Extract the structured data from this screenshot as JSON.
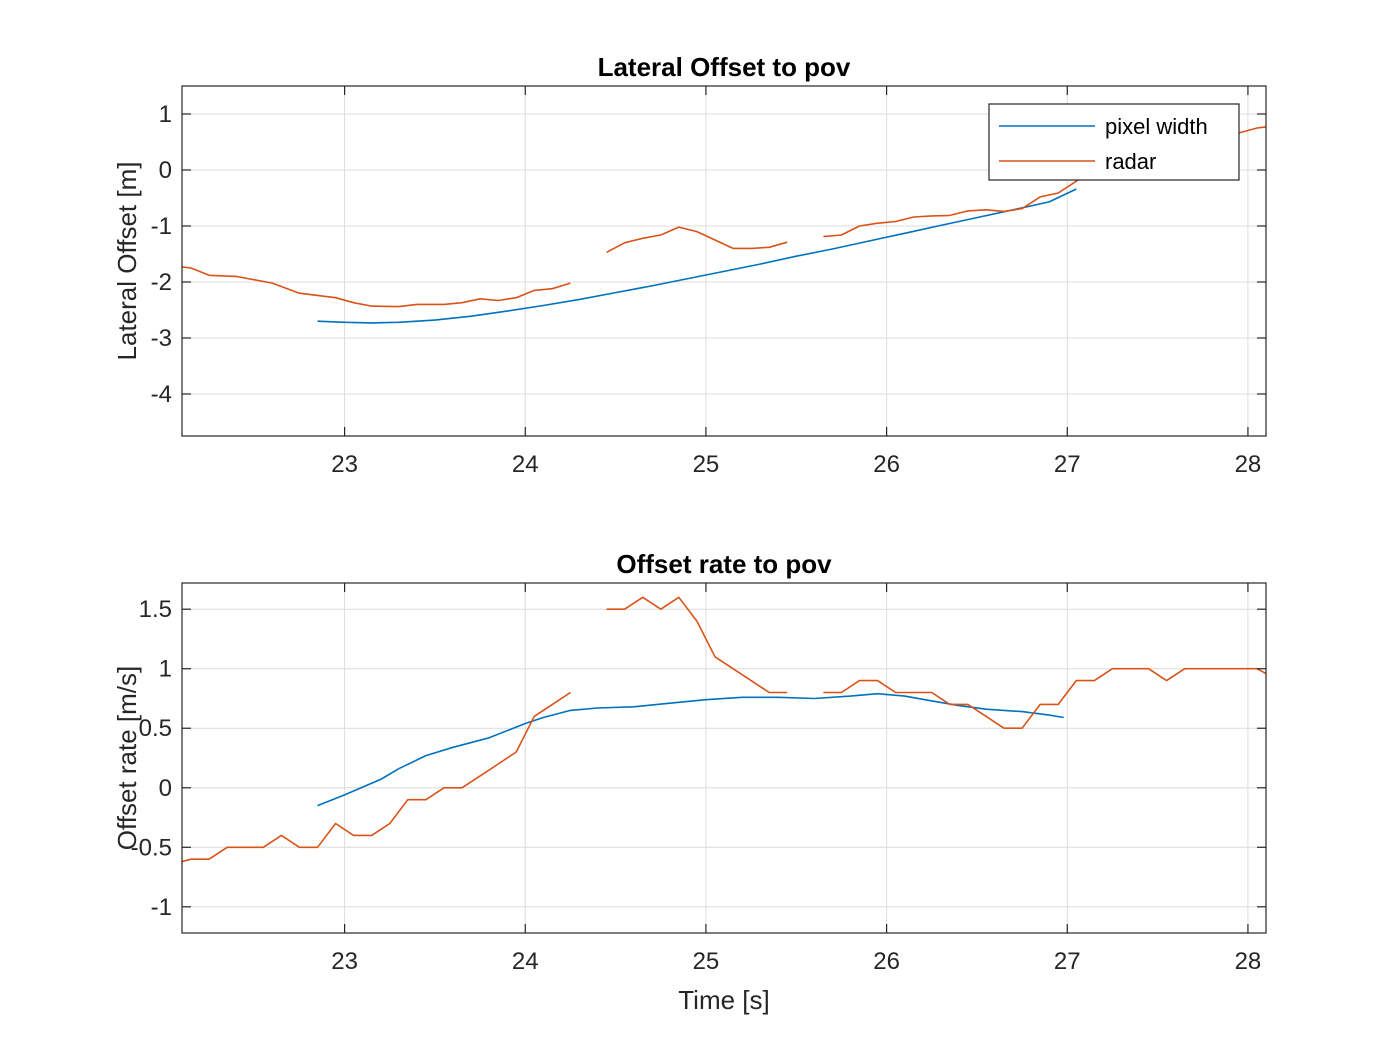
{
  "colors": {
    "pixel_width": "#0072BD",
    "radar": "#D95319",
    "axes": "#262626",
    "grid": "#DCDCDC",
    "background": "#FFFFFF"
  },
  "chart_data": [
    {
      "type": "line",
      "title": "Lateral  Offset to pov",
      "xlabel": "",
      "ylabel": "Lateral Offset [m]",
      "xlim": [
        22.1,
        28.1
      ],
      "ylim": [
        -4.75,
        1.5
      ],
      "xticks": [
        23,
        24,
        25,
        26,
        27,
        28
      ],
      "yticks": [
        -4,
        -3,
        -2,
        -1,
        0,
        1
      ],
      "grid": true,
      "legend": {
        "placement": "top-right",
        "entries": [
          "pixel width",
          "radar"
        ]
      },
      "series": [
        {
          "name": "pixel width",
          "color": "#0072BD",
          "segments": [
            [
              [
                22.85,
                -2.7
              ],
              [
                23.0,
                -2.72
              ],
              [
                23.15,
                -2.73
              ],
              [
                23.3,
                -2.72
              ],
              [
                23.5,
                -2.68
              ],
              [
                23.7,
                -2.61
              ],
              [
                23.9,
                -2.52
              ],
              [
                24.1,
                -2.42
              ],
              [
                24.3,
                -2.31
              ],
              [
                24.5,
                -2.19
              ],
              [
                24.7,
                -2.07
              ],
              [
                24.9,
                -1.94
              ],
              [
                25.1,
                -1.81
              ],
              [
                25.3,
                -1.68
              ],
              [
                25.5,
                -1.54
              ],
              [
                25.7,
                -1.41
              ],
              [
                25.9,
                -1.27
              ],
              [
                26.1,
                -1.13
              ],
              [
                26.3,
                -0.99
              ],
              [
                26.5,
                -0.85
              ],
              [
                26.7,
                -0.71
              ],
              [
                26.9,
                -0.57
              ],
              [
                27.05,
                -0.34
              ]
            ]
          ]
        },
        {
          "name": "radar",
          "color": "#D95319",
          "segments": [
            [
              [
                22.1,
                -1.73
              ],
              [
                22.15,
                -1.75
              ],
              [
                22.25,
                -1.88
              ],
              [
                22.4,
                -1.9
              ],
              [
                22.6,
                -2.02
              ],
              [
                22.75,
                -2.2
              ],
              [
                22.95,
                -2.28
              ],
              [
                23.05,
                -2.37
              ],
              [
                23.15,
                -2.43
              ],
              [
                23.3,
                -2.44
              ],
              [
                23.4,
                -2.4
              ],
              [
                23.55,
                -2.4
              ],
              [
                23.65,
                -2.37
              ],
              [
                23.75,
                -2.3
              ],
              [
                23.85,
                -2.33
              ],
              [
                23.95,
                -2.28
              ],
              [
                24.05,
                -2.15
              ],
              [
                24.15,
                -2.12
              ],
              [
                24.25,
                -2.02
              ]
            ],
            [
              [
                24.45,
                -1.47
              ],
              [
                24.55,
                -1.3
              ],
              [
                24.65,
                -1.22
              ],
              [
                24.75,
                -1.16
              ],
              [
                24.85,
                -1.02
              ],
              [
                24.95,
                -1.1
              ],
              [
                25.05,
                -1.25
              ],
              [
                25.15,
                -1.4
              ],
              [
                25.25,
                -1.4
              ],
              [
                25.35,
                -1.38
              ],
              [
                25.45,
                -1.29
              ]
            ],
            [
              [
                25.65,
                -1.19
              ],
              [
                25.75,
                -1.16
              ],
              [
                25.85,
                -1.0
              ],
              [
                25.95,
                -0.95
              ],
              [
                26.05,
                -0.92
              ],
              [
                26.15,
                -0.84
              ],
              [
                26.25,
                -0.82
              ],
              [
                26.35,
                -0.81
              ],
              [
                26.45,
                -0.73
              ],
              [
                26.55,
                -0.71
              ],
              [
                26.65,
                -0.74
              ],
              [
                26.75,
                -0.69
              ],
              [
                26.85,
                -0.48
              ],
              [
                26.95,
                -0.41
              ],
              [
                27.05,
                -0.2
              ],
              [
                27.1,
                -0.08
              ],
              [
                27.2,
                0.1
              ],
              [
                27.35,
                0.3
              ],
              [
                27.5,
                0.4
              ],
              [
                27.65,
                0.48
              ],
              [
                27.8,
                0.55
              ],
              [
                27.95,
                0.66
              ],
              [
                28.05,
                0.75
              ],
              [
                28.1,
                0.77
              ]
            ]
          ]
        }
      ]
    },
    {
      "type": "line",
      "title": "Offset rate to pov",
      "xlabel": "Time [s]",
      "ylabel": "Offset rate [m/s]",
      "xlim": [
        22.1,
        28.1
      ],
      "ylim": [
        -1.22,
        1.72
      ],
      "xticks": [
        23,
        24,
        25,
        26,
        27,
        28
      ],
      "yticks": [
        -1,
        -0.5,
        0,
        0.5,
        1,
        1.5
      ],
      "grid": true,
      "series": [
        {
          "name": "pixel width",
          "color": "#0072BD",
          "segments": [
            [
              [
                22.85,
                -0.15
              ],
              [
                23.0,
                -0.06
              ],
              [
                23.2,
                0.07
              ],
              [
                23.3,
                0.16
              ],
              [
                23.45,
                0.27
              ],
              [
                23.6,
                0.34
              ],
              [
                23.8,
                0.42
              ],
              [
                24.0,
                0.54
              ],
              [
                24.1,
                0.59
              ],
              [
                24.25,
                0.65
              ],
              [
                24.4,
                0.67
              ],
              [
                24.6,
                0.68
              ],
              [
                24.8,
                0.71
              ],
              [
                25.0,
                0.74
              ],
              [
                25.2,
                0.76
              ],
              [
                25.4,
                0.76
              ],
              [
                25.6,
                0.75
              ],
              [
                25.8,
                0.77
              ],
              [
                25.95,
                0.79
              ],
              [
                26.1,
                0.77
              ],
              [
                26.25,
                0.73
              ],
              [
                26.4,
                0.69
              ],
              [
                26.55,
                0.66
              ],
              [
                26.75,
                0.64
              ],
              [
                26.9,
                0.61
              ],
              [
                26.98,
                0.59
              ]
            ]
          ]
        },
        {
          "name": "radar",
          "color": "#D95319",
          "segments": [
            [
              [
                22.1,
                -0.62
              ],
              [
                22.15,
                -0.6
              ],
              [
                22.25,
                -0.6
              ],
              [
                22.35,
                -0.5
              ],
              [
                22.45,
                -0.5
              ],
              [
                22.55,
                -0.5
              ],
              [
                22.65,
                -0.4
              ],
              [
                22.75,
                -0.5
              ],
              [
                22.85,
                -0.5
              ],
              [
                22.95,
                -0.3
              ],
              [
                23.05,
                -0.4
              ],
              [
                23.15,
                -0.4
              ],
              [
                23.25,
                -0.3
              ],
              [
                23.35,
                -0.1
              ],
              [
                23.45,
                -0.1
              ],
              [
                23.55,
                0.0
              ],
              [
                23.65,
                0.0
              ],
              [
                23.75,
                0.1
              ],
              [
                23.85,
                0.2
              ],
              [
                23.95,
                0.3
              ],
              [
                24.05,
                0.6
              ],
              [
                24.15,
                0.7
              ],
              [
                24.25,
                0.8
              ]
            ],
            [
              [
                24.45,
                1.5
              ],
              [
                24.55,
                1.5
              ],
              [
                24.65,
                1.6
              ],
              [
                24.75,
                1.5
              ],
              [
                24.85,
                1.6
              ],
              [
                24.95,
                1.4
              ],
              [
                25.05,
                1.1
              ],
              [
                25.15,
                1.0
              ],
              [
                25.25,
                0.9
              ],
              [
                25.35,
                0.8
              ],
              [
                25.45,
                0.8
              ]
            ],
            [
              [
                25.65,
                0.8
              ],
              [
                25.75,
                0.8
              ],
              [
                25.85,
                0.9
              ],
              [
                25.95,
                0.9
              ],
              [
                26.05,
                0.8
              ],
              [
                26.15,
                0.8
              ],
              [
                26.25,
                0.8
              ],
              [
                26.35,
                0.7
              ],
              [
                26.45,
                0.7
              ],
              [
                26.55,
                0.6
              ],
              [
                26.65,
                0.5
              ],
              [
                26.75,
                0.5
              ],
              [
                26.85,
                0.7
              ],
              [
                26.95,
                0.7
              ],
              [
                27.05,
                0.9
              ],
              [
                27.15,
                0.9
              ],
              [
                27.25,
                1.0
              ],
              [
                27.35,
                1.0
              ],
              [
                27.45,
                1.0
              ],
              [
                27.55,
                0.9
              ],
              [
                27.65,
                1.0
              ],
              [
                27.75,
                1.0
              ],
              [
                27.85,
                1.0
              ],
              [
                27.95,
                1.0
              ],
              [
                28.05,
                1.0
              ],
              [
                28.1,
                0.96
              ]
            ]
          ]
        }
      ]
    }
  ]
}
